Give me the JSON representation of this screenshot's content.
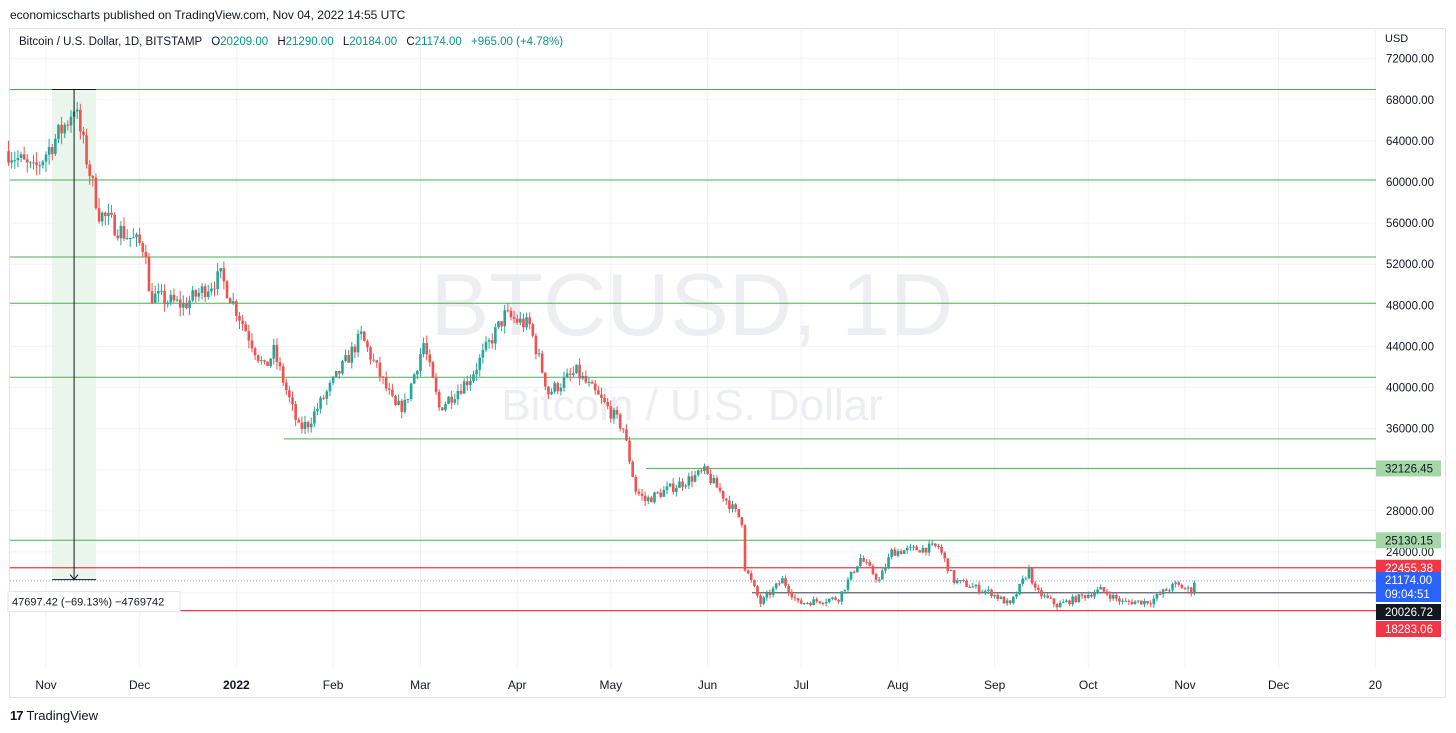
{
  "publisher": "economicscharts published on TradingView.com, Nov 04, 2022 14:55 UTC",
  "legend": {
    "symbol": "Bitcoin / U.S. Dollar, 1D, BITSTAMP",
    "o_label": "O",
    "o": "20209.00",
    "h_label": "H",
    "h": "21290.00",
    "l_label": "L",
    "l": "20184.00",
    "c_label": "C",
    "c": "21174.00",
    "change": "+965.00 (+4.78%)"
  },
  "currency": "USD",
  "watermark": {
    "ticker": "BTCUSD, 1D",
    "name": "Bitcoin / U.S. Dollar"
  },
  "footer": {
    "logo": "17",
    "brand": "TradingView"
  },
  "colors": {
    "up": "#26a69a",
    "down": "#ef5350",
    "level": "#4caf50",
    "red_level": "#f23645",
    "grid": "#f0f3fa",
    "last_price_bg": "#2962ff"
  },
  "chart_data": {
    "type": "candlestick",
    "symbol": "BTCUSD",
    "interval": "1D",
    "x_labels": [
      "Nov",
      "Dec",
      "2022",
      "Feb",
      "Mar",
      "Apr",
      "May",
      "Jun",
      "Jul",
      "Aug",
      "Sep",
      "Oct",
      "Nov",
      "Dec",
      "20"
    ],
    "x_dates": [
      "2021-11-01",
      "2021-12-01",
      "2022-01-01",
      "2022-02-01",
      "2022-03-01",
      "2022-04-01",
      "2022-05-01",
      "2022-06-01",
      "2022-07-01",
      "2022-08-01",
      "2022-09-01",
      "2022-10-01",
      "2022-11-01",
      "2022-12-01",
      "2023-01-01"
    ],
    "y_ticks": [
      "72000.00",
      "68000.00",
      "64000.00",
      "60000.00",
      "56000.00",
      "52000.00",
      "48000.00",
      "44000.00",
      "40000.00",
      "36000.00",
      "32000.00",
      "28000.00",
      "24000.00",
      "20000.00"
    ],
    "ylim": [
      15000,
      74000
    ],
    "horizontal_levels_green": [
      69000,
      60200,
      52700,
      48200,
      41000,
      35000,
      32126.45,
      25130.15
    ],
    "horizontal_levels_red": [
      22455.38,
      18283.06
    ],
    "support_line_dark": 20026.72,
    "last_price_line": 21174.0,
    "price_labels": [
      {
        "text": "32126.45",
        "value": 32126.45,
        "style": "green"
      },
      {
        "text": "25130.15",
        "value": 25130.15,
        "style": "green"
      },
      {
        "text": "22455.38",
        "value": 22455.38,
        "style": "red"
      },
      {
        "text": "21174.00",
        "value": 21174.0,
        "style": "blue"
      },
      {
        "text": "09:04:51",
        "value": 19900,
        "style": "blue-sub"
      },
      {
        "text": "20026.72",
        "value": 20026.72,
        "style": "dark"
      },
      {
        "text": "18283.06",
        "value": 18283.06,
        "style": "red"
      }
    ],
    "measure": {
      "from_date": "2021-11-10",
      "to_date": "2021-11-10",
      "from_value": 69000,
      "to_value": 21302.58,
      "label": "47697.42 (−69.13%) −4769742"
    },
    "ohlc_anchors": [
      [
        "2021-10-20",
        63000
      ],
      [
        "2021-10-28",
        61000
      ],
      [
        "2021-11-08",
        66000
      ],
      [
        "2021-11-10",
        67500
      ],
      [
        "2021-11-18",
        57000
      ],
      [
        "2021-11-26",
        55000
      ],
      [
        "2021-12-03",
        53500
      ],
      [
        "2021-12-04",
        49000
      ],
      [
        "2021-12-15",
        48000
      ],
      [
        "2021-12-27",
        50800
      ],
      [
        "2022-01-05",
        45000
      ],
      [
        "2022-01-10",
        41800
      ],
      [
        "2022-01-13",
        43500
      ],
      [
        "2022-01-21",
        36000
      ],
      [
        "2022-01-24",
        36500
      ],
      [
        "2022-02-10",
        45000
      ],
      [
        "2022-02-21",
        38000
      ],
      [
        "2022-02-24",
        38300
      ],
      [
        "2022-03-02",
        44300
      ],
      [
        "2022-03-07",
        38000
      ],
      [
        "2022-03-17",
        41000
      ],
      [
        "2022-03-28",
        47000
      ],
      [
        "2022-04-05",
        46000
      ],
      [
        "2022-04-11",
        39500
      ],
      [
        "2022-04-20",
        41500
      ],
      [
        "2022-04-30",
        38000
      ],
      [
        "2022-05-05",
        36000
      ],
      [
        "2022-05-09",
        30000
      ],
      [
        "2022-05-12",
        29000
      ],
      [
        "2022-05-31",
        31800
      ],
      [
        "2022-06-05",
        29900
      ],
      [
        "2022-06-12",
        27000
      ],
      [
        "2022-06-13",
        22500
      ],
      [
        "2022-06-18",
        19000
      ],
      [
        "2022-06-25",
        21300
      ],
      [
        "2022-06-30",
        19000
      ],
      [
        "2022-07-13",
        19500
      ],
      [
        "2022-07-20",
        23400
      ],
      [
        "2022-07-26",
        21200
      ],
      [
        "2022-07-30",
        24000
      ],
      [
        "2022-08-14",
        24500
      ],
      [
        "2022-08-19",
        21200
      ],
      [
        "2022-08-31",
        20000
      ],
      [
        "2022-09-06",
        18800
      ],
      [
        "2022-09-12",
        22300
      ],
      [
        "2022-09-14",
        20200
      ],
      [
        "2022-09-21",
        18800
      ],
      [
        "2022-10-05",
        20300
      ],
      [
        "2022-10-12",
        19100
      ],
      [
        "2022-10-21",
        19200
      ],
      [
        "2022-10-25",
        20100
      ],
      [
        "2022-10-29",
        20800
      ],
      [
        "2022-11-03",
        20200
      ],
      [
        "2022-11-04",
        21174
      ]
    ]
  }
}
